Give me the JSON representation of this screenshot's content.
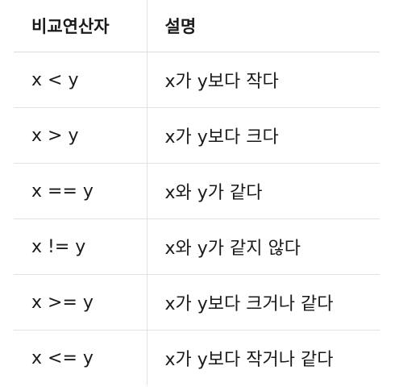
{
  "table": {
    "headers": [
      "비교연산자",
      "설명"
    ],
    "rows": [
      {
        "operator": "x < y",
        "description": "x가 y보다 작다"
      },
      {
        "operator": "x > y",
        "description": "x가 y보다 크다"
      },
      {
        "operator": "x == y",
        "description": "x와 y가 같다"
      },
      {
        "operator": "x != y",
        "description": "x와 y가 같지 않다"
      },
      {
        "operator": "x >= y",
        "description": "x가 y보다 크거나 같다"
      },
      {
        "operator": "x <= y",
        "description": "x가 y보다 작거나 같다"
      }
    ]
  }
}
